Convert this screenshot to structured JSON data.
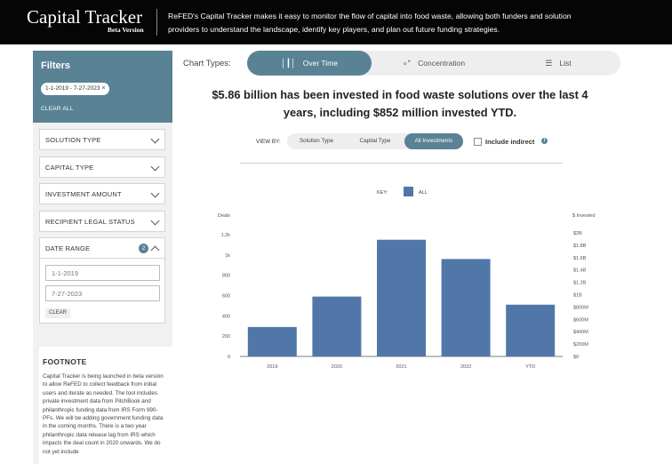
{
  "header": {
    "title": "Capital Tracker",
    "subtitle": "Beta Version",
    "description": "ReFED's Capital Tracker makes it easy to monitor the flow of capital into food waste, allowing both funders and solution providers to understand the landscape, identify key players, and plan out future funding strategies."
  },
  "filters": {
    "title": "Filters",
    "active_chip": "1-1-2019 - 7-27-2023",
    "chip_close": "×",
    "clear_all": "CLEAR ALL"
  },
  "facets": [
    {
      "label": "SOLUTION TYPE"
    },
    {
      "label": "CAPITAL TYPE"
    },
    {
      "label": "INVESTMENT AMOUNT"
    },
    {
      "label": "RECIPIENT LEGAL STATUS"
    },
    {
      "label": "DATE RANGE",
      "count": "2"
    }
  ],
  "date_range": {
    "start_placeholder": "1-1-2019",
    "end_placeholder": "7-27-2023",
    "clear_label": "CLEAR"
  },
  "footnote": {
    "title": "FOOTNOTE",
    "text": "Capital Tracker is being launched in beta version to allow ReFED to collect feedback from initial users and iterate as needed. The tool includes private investment data from PitchBook and philanthropic funding data from IRS Form 990-PFs. We will be adding government funding data in the coming months. There is a two year philanthropic data release lag from IRS which impacts the deal count in 2020 onwards. We do not yet include"
  },
  "chart_types": {
    "label": "Chart Types:",
    "options": [
      {
        "label": "Over Time",
        "icon": "bar-chart-icon",
        "active": true
      },
      {
        "label": "Concentration",
        "icon": "bubbles-icon",
        "active": false
      },
      {
        "label": "List",
        "icon": "list-icon",
        "active": false
      }
    ]
  },
  "headline": "$5.86 billion has been invested in food waste solutions over the last 4 years, including $852 million invested YTD.",
  "view_by": {
    "label": "VIEW BY:",
    "options": [
      {
        "label": "Solution Type",
        "active": false
      },
      {
        "label": "Capital Type",
        "active": false
      },
      {
        "label": "All Investments",
        "active": true
      }
    ],
    "include_indirect": "Include indirect",
    "include_indirect_checked": false
  },
  "colors": {
    "accent": "#5a8295",
    "bar": "#5177a8",
    "header_bg": "#050505"
  },
  "chart_data": {
    "type": "bar",
    "legend_title": "KEY:",
    "categories": [
      "2019",
      "2020",
      "2021",
      "2022",
      "YTD"
    ],
    "series": [
      {
        "name": "ALL",
        "values": [
          290,
          590,
          1150,
          960,
          510
        ]
      }
    ],
    "ylabel": "Deals",
    "y_ticks": [
      "1.2k",
      "1k",
      "800",
      "600",
      "400",
      "200",
      "0"
    ],
    "y_tick_values": [
      1200,
      1000,
      800,
      600,
      400,
      200,
      0
    ],
    "ylim": [
      0,
      1200
    ],
    "y2label": "$ Invested",
    "y2_ticks": [
      "$2B",
      "$1.8B",
      "$1.6B",
      "$1.4B",
      "$1.2B",
      "$1B",
      "$800M",
      "$600M",
      "$400M",
      "$200M",
      "$0"
    ],
    "y2lim": [
      0,
      2000000000
    ],
    "grid": false,
    "legend_position": "top"
  }
}
